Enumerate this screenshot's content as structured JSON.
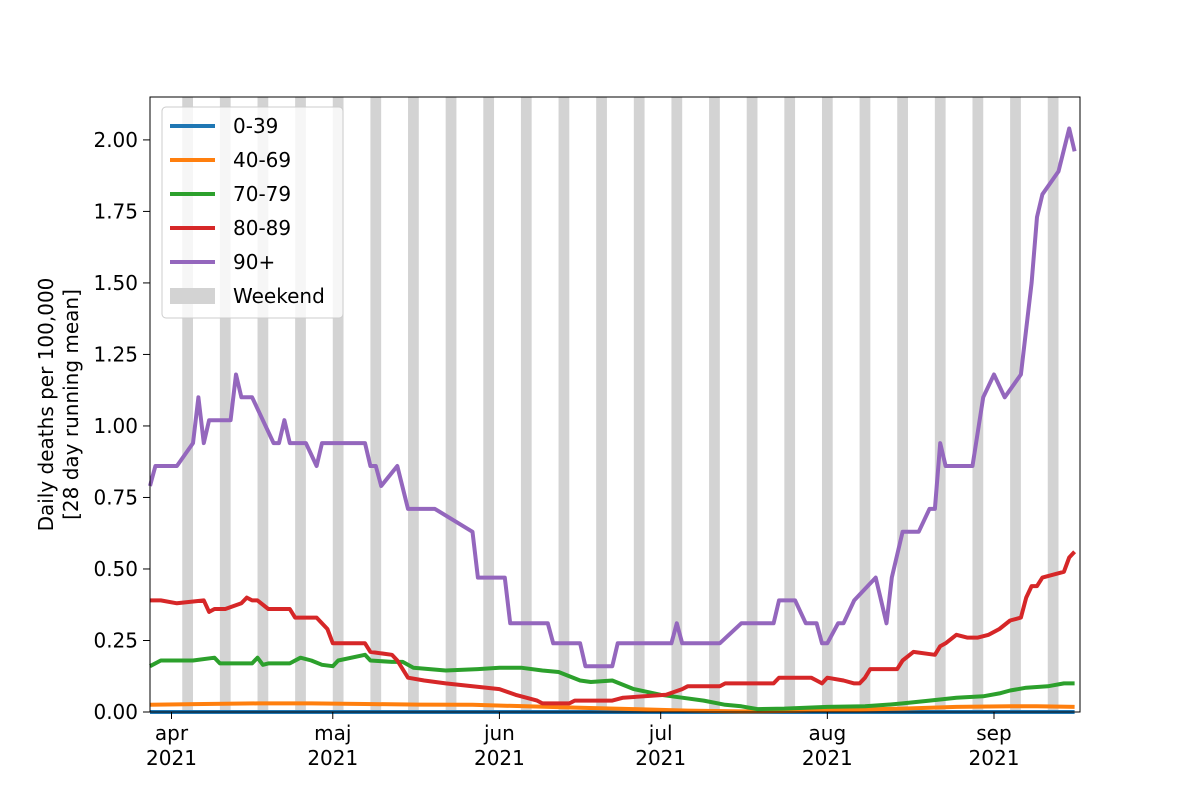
{
  "chart_data": {
    "type": "line",
    "title": "",
    "xlabel": "",
    "ylabel_line1": "Daily deaths per 100,000",
    "ylabel_line2": "[28 day running mean]",
    "x_unit": "day index (0 = 2021-03-28)",
    "xlim": [
      0,
      173
    ],
    "ylim": [
      0,
      2.15
    ],
    "y_ticks": [
      0.0,
      0.25,
      0.5,
      0.75,
      1.0,
      1.25,
      1.5,
      1.75,
      2.0
    ],
    "y_tick_labels": [
      "0.00",
      "0.25",
      "0.50",
      "0.75",
      "1.00",
      "1.25",
      "1.50",
      "1.75",
      "2.00"
    ],
    "x_ticks": [
      {
        "day": 4,
        "month": "apr",
        "year": "2021"
      },
      {
        "day": 34,
        "month": "maj",
        "year": "2021"
      },
      {
        "day": 65,
        "month": "jun",
        "year": "2021"
      },
      {
        "day": 95,
        "month": "jul",
        "year": "2021"
      },
      {
        "day": 126,
        "month": "aug",
        "year": "2021"
      },
      {
        "day": 157,
        "month": "sep",
        "year": "2021"
      }
    ],
    "weekend_start_days": [
      6,
      13,
      20,
      27,
      34,
      41,
      48,
      55,
      62,
      69,
      76,
      83,
      90,
      97,
      104,
      111,
      118,
      125,
      132,
      139,
      146,
      153,
      160,
      167
    ],
    "weekend_span_days": 2,
    "legend_position": "top-left",
    "series": [
      {
        "name": "0-39",
        "color": "#1f77b4",
        "points": [
          [
            0,
            0.0
          ],
          [
            172,
            0.0
          ]
        ]
      },
      {
        "name": "40-69",
        "color": "#ff7f0e",
        "points": [
          [
            0,
            0.025
          ],
          [
            10,
            0.028
          ],
          [
            20,
            0.03
          ],
          [
            30,
            0.03
          ],
          [
            40,
            0.028
          ],
          [
            50,
            0.026
          ],
          [
            60,
            0.025
          ],
          [
            70,
            0.02
          ],
          [
            80,
            0.015
          ],
          [
            90,
            0.01
          ],
          [
            100,
            0.005
          ],
          [
            110,
            0.002
          ],
          [
            120,
            0.004
          ],
          [
            130,
            0.008
          ],
          [
            140,
            0.012
          ],
          [
            150,
            0.018
          ],
          [
            160,
            0.02
          ],
          [
            165,
            0.02
          ],
          [
            172,
            0.018
          ]
        ]
      },
      {
        "name": "70-79",
        "color": "#2ca02c",
        "points": [
          [
            0,
            0.16
          ],
          [
            2,
            0.18
          ],
          [
            8,
            0.18
          ],
          [
            12,
            0.19
          ],
          [
            13,
            0.17
          ],
          [
            19,
            0.17
          ],
          [
            20,
            0.19
          ],
          [
            21,
            0.165
          ],
          [
            22,
            0.17
          ],
          [
            26,
            0.17
          ],
          [
            28,
            0.19
          ],
          [
            30,
            0.18
          ],
          [
            32,
            0.165
          ],
          [
            34,
            0.16
          ],
          [
            35,
            0.18
          ],
          [
            40,
            0.2
          ],
          [
            41,
            0.18
          ],
          [
            45,
            0.175
          ],
          [
            47,
            0.175
          ],
          [
            49,
            0.155
          ],
          [
            55,
            0.145
          ],
          [
            61,
            0.15
          ],
          [
            65,
            0.155
          ],
          [
            69,
            0.155
          ],
          [
            73,
            0.145
          ],
          [
            76,
            0.14
          ],
          [
            80,
            0.11
          ],
          [
            82,
            0.105
          ],
          [
            86,
            0.11
          ],
          [
            90,
            0.08
          ],
          [
            95,
            0.06
          ],
          [
            99,
            0.05
          ],
          [
            103,
            0.04
          ],
          [
            107,
            0.025
          ],
          [
            110,
            0.02
          ],
          [
            113,
            0.01
          ],
          [
            118,
            0.012
          ],
          [
            122,
            0.015
          ],
          [
            126,
            0.018
          ],
          [
            133,
            0.02
          ],
          [
            137,
            0.025
          ],
          [
            140,
            0.03
          ],
          [
            145,
            0.04
          ],
          [
            150,
            0.05
          ],
          [
            155,
            0.055
          ],
          [
            158,
            0.065
          ],
          [
            160,
            0.075
          ],
          [
            163,
            0.085
          ],
          [
            167,
            0.09
          ],
          [
            170,
            0.1
          ],
          [
            172,
            0.1
          ]
        ]
      },
      {
        "name": "80-89",
        "color": "#d62728",
        "points": [
          [
            0,
            0.39
          ],
          [
            2,
            0.39
          ],
          [
            5,
            0.38
          ],
          [
            10,
            0.39
          ],
          [
            11,
            0.35
          ],
          [
            12,
            0.36
          ],
          [
            14,
            0.36
          ],
          [
            17,
            0.38
          ],
          [
            18,
            0.4
          ],
          [
            19,
            0.39
          ],
          [
            20,
            0.39
          ],
          [
            22,
            0.36
          ],
          [
            26,
            0.36
          ],
          [
            27,
            0.33
          ],
          [
            31,
            0.33
          ],
          [
            33,
            0.29
          ],
          [
            34,
            0.24
          ],
          [
            40,
            0.24
          ],
          [
            41,
            0.21
          ],
          [
            45,
            0.2
          ],
          [
            46,
            0.18
          ],
          [
            48,
            0.12
          ],
          [
            51,
            0.11
          ],
          [
            55,
            0.1
          ],
          [
            60,
            0.09
          ],
          [
            65,
            0.08
          ],
          [
            68,
            0.06
          ],
          [
            70,
            0.05
          ],
          [
            72,
            0.04
          ],
          [
            73,
            0.03
          ],
          [
            78,
            0.03
          ],
          [
            79,
            0.04
          ],
          [
            86,
            0.04
          ],
          [
            88,
            0.05
          ],
          [
            96,
            0.06
          ],
          [
            99,
            0.08
          ],
          [
            100,
            0.09
          ],
          [
            106,
            0.09
          ],
          [
            107,
            0.1
          ],
          [
            116,
            0.1
          ],
          [
            117,
            0.12
          ],
          [
            123,
            0.12
          ],
          [
            124,
            0.11
          ],
          [
            125,
            0.1
          ],
          [
            126,
            0.12
          ],
          [
            129,
            0.11
          ],
          [
            131,
            0.1
          ],
          [
            132,
            0.1
          ],
          [
            133,
            0.12
          ],
          [
            134,
            0.15
          ],
          [
            139,
            0.15
          ],
          [
            140,
            0.18
          ],
          [
            142,
            0.21
          ],
          [
            146,
            0.2
          ],
          [
            147,
            0.23
          ],
          [
            148,
            0.24
          ],
          [
            150,
            0.27
          ],
          [
            152,
            0.26
          ],
          [
            154,
            0.26
          ],
          [
            156,
            0.27
          ],
          [
            158,
            0.29
          ],
          [
            160,
            0.32
          ],
          [
            162,
            0.33
          ],
          [
            163,
            0.4
          ],
          [
            164,
            0.44
          ],
          [
            165,
            0.44
          ],
          [
            166,
            0.47
          ],
          [
            168,
            0.48
          ],
          [
            170,
            0.49
          ],
          [
            171,
            0.54
          ],
          [
            172,
            0.56
          ]
        ]
      },
      {
        "name": "90+",
        "color": "#9467bd",
        "points": [
          [
            0,
            0.79
          ],
          [
            1,
            0.86
          ],
          [
            5,
            0.86
          ],
          [
            8,
            0.94
          ],
          [
            9,
            1.1
          ],
          [
            10,
            0.94
          ],
          [
            11,
            1.02
          ],
          [
            15,
            1.02
          ],
          [
            16,
            1.18
          ],
          [
            17,
            1.1
          ],
          [
            19,
            1.1
          ],
          [
            23,
            0.94
          ],
          [
            24,
            0.94
          ],
          [
            25,
            1.02
          ],
          [
            26,
            0.94
          ],
          [
            28,
            0.94
          ],
          [
            29,
            0.94
          ],
          [
            31,
            0.86
          ],
          [
            32,
            0.94
          ],
          [
            40,
            0.94
          ],
          [
            41,
            0.86
          ],
          [
            42,
            0.86
          ],
          [
            43,
            0.79
          ],
          [
            46,
            0.86
          ],
          [
            48,
            0.71
          ],
          [
            53,
            0.71
          ],
          [
            60,
            0.63
          ],
          [
            61,
            0.47
          ],
          [
            66,
            0.47
          ],
          [
            67,
            0.31
          ],
          [
            74,
            0.31
          ],
          [
            75,
            0.24
          ],
          [
            80,
            0.24
          ],
          [
            81,
            0.16
          ],
          [
            86,
            0.16
          ],
          [
            87,
            0.24
          ],
          [
            97,
            0.24
          ],
          [
            98,
            0.31
          ],
          [
            99,
            0.24
          ],
          [
            106,
            0.24
          ],
          [
            110,
            0.31
          ],
          [
            116,
            0.31
          ],
          [
            117,
            0.39
          ],
          [
            120,
            0.39
          ],
          [
            122,
            0.31
          ],
          [
            124,
            0.31
          ],
          [
            125,
            0.24
          ],
          [
            126,
            0.24
          ],
          [
            128,
            0.31
          ],
          [
            129,
            0.31
          ],
          [
            131,
            0.39
          ],
          [
            135,
            0.47
          ],
          [
            137,
            0.31
          ],
          [
            138,
            0.47
          ],
          [
            140,
            0.63
          ],
          [
            143,
            0.63
          ],
          [
            145,
            0.71
          ],
          [
            146,
            0.71
          ],
          [
            147,
            0.94
          ],
          [
            148,
            0.86
          ],
          [
            153,
            0.86
          ],
          [
            155,
            1.1
          ],
          [
            157,
            1.18
          ],
          [
            159,
            1.1
          ],
          [
            162,
            1.18
          ],
          [
            164,
            1.5
          ],
          [
            165,
            1.73
          ],
          [
            166,
            1.81
          ],
          [
            169,
            1.89
          ],
          [
            171,
            2.04
          ],
          [
            172,
            1.96
          ]
        ]
      }
    ],
    "legend_labels": [
      "0-39",
      "40-69",
      "70-79",
      "80-89",
      "90+",
      "Weekend"
    ],
    "weekend_color": "#d3d3d3"
  }
}
